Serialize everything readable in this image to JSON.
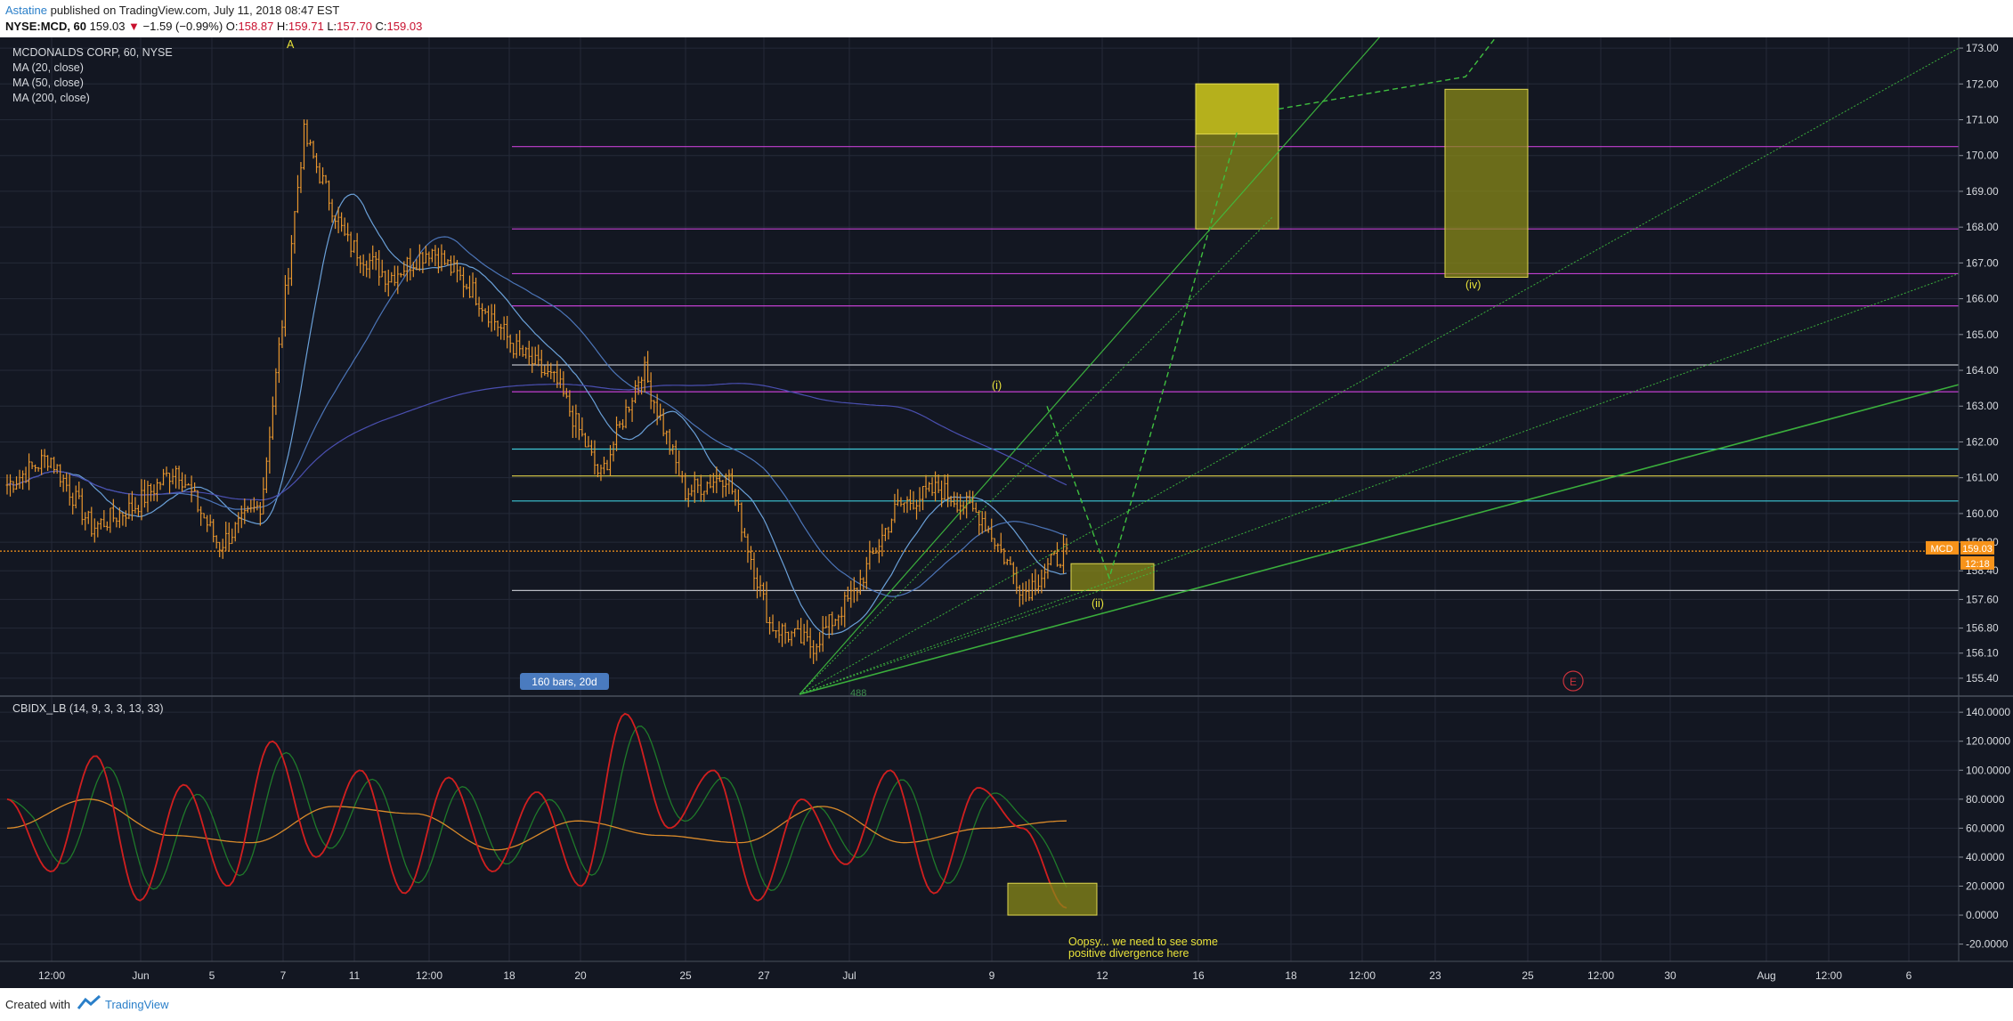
{
  "header": {
    "author": "Astatine",
    "published": "published on TradingView.com, July 11, 2018 08:47 EST",
    "symbol": "NYSE:MCD, 60",
    "last": "159.03",
    "change_arrow": "▼",
    "change": "−1.59 (−0.99%)",
    "o_label": "O:",
    "o": "158.87",
    "h_label": "H:",
    "h": "159.71",
    "l_label": "L:",
    "l": "157.70",
    "c_label": "C:",
    "c": "159.03"
  },
  "legend": {
    "title": "MCDONALDS CORP, 60, NYSE",
    "ma20": "MA (20, close)",
    "ma50": "MA (50, close)",
    "ma200": "MA (200, close)",
    "indicator": "CBIDX_LB (14, 9, 3, 3, 13, 33)"
  },
  "price_badge": {
    "symbol": "MCD",
    "price": "159.03",
    "countdown": "12:18"
  },
  "footer": {
    "created_with": "Created with",
    "brand": "TradingView"
  },
  "colors": {
    "background": "#131722",
    "candle": "#e8962e",
    "ma20": "#6aa0d8",
    "ma50": "#4c75b8",
    "ma200": "#4a4fb0",
    "magenta": "#c23fd0",
    "cyan": "#3ec8d8",
    "yellow_line": "#e0d24a",
    "gray_line": "#b9bcc4",
    "green": "#3fbf3f",
    "box": "#8a8a18",
    "osc_red": "#d11f1f",
    "osc_orange": "#d98a2a",
    "osc_green": "#1f7a2a",
    "badge": "#f7931a"
  },
  "chart_data": {
    "type": "candlestick",
    "symbol": "MCD",
    "title": "MCDONALDS CORP, 60, NYSE",
    "interval": "60",
    "x_tick_labels": [
      "12:00",
      "Jun",
      "5",
      "7",
      "11",
      "12:00",
      "18",
      "20",
      "25",
      "27",
      "Jul",
      "9",
      "12",
      "16",
      "18",
      "12:00",
      "23",
      "25",
      "12:00",
      "30",
      "Aug",
      "12:00",
      "6"
    ],
    "y_tick_labels": [
      "173.00",
      "172.00",
      "171.00",
      "170.00",
      "169.00",
      "168.00",
      "167.00",
      "166.00",
      "165.00",
      "164.00",
      "163.00",
      "162.00",
      "161.00",
      "160.00",
      "159.20",
      "158.40",
      "157.60",
      "156.80",
      "156.10",
      "155.40"
    ],
    "ylim": [
      154.95,
      173.3
    ],
    "approx_close_path": [
      160.8,
      161.6,
      159.6,
      160.2,
      161.3,
      159.1,
      160.3,
      170.6,
      167.6,
      166.6,
      167.4,
      166.2,
      164.6,
      163.6,
      161.0,
      164.1,
      160.6,
      161.1,
      156.9,
      156.3,
      157.8,
      160.2,
      160.7,
      159.9,
      157.8,
      159.03
    ],
    "horizontal_levels": [
      {
        "value": 170.25,
        "color": "magenta"
      },
      {
        "value": 167.95,
        "color": "magenta"
      },
      {
        "value": 166.7,
        "color": "magenta"
      },
      {
        "value": 165.8,
        "color": "magenta"
      },
      {
        "value": 164.15,
        "color": "gray"
      },
      {
        "value": 163.4,
        "color": "magenta"
      },
      {
        "value": 161.8,
        "color": "cyan"
      },
      {
        "value": 161.05,
        "color": "yellow"
      },
      {
        "value": 160.35,
        "color": "cyan"
      },
      {
        "value": 158.95,
        "color": "orange-dotted"
      },
      {
        "value": 157.85,
        "color": "gray"
      }
    ],
    "target_boxes": [
      {
        "label": "(ii)",
        "price_range": [
          157.85,
          158.6
        ]
      },
      {
        "label": "",
        "price_range": [
          167.95,
          172.0
        ]
      },
      {
        "label": "(iv)",
        "price_range": [
          166.6,
          171.85
        ]
      }
    ],
    "wave_labels": [
      "A",
      "(i)",
      "(ii)",
      "(iv)",
      "E"
    ],
    "range_tag": "160 bars, 20d",
    "fan_origin_tag": "488",
    "oscillator": {
      "name": "CBIDX_LB (14, 9, 3, 3, 13, 33)",
      "ylim": [
        -27,
        145
      ],
      "y_tick_labels": [
        "140.0000",
        "120.0000",
        "100.0000",
        "80.0000",
        "60.0000",
        "40.0000",
        "20.0000",
        "0.0000",
        "-20.0000"
      ],
      "approx_red_path": [
        80,
        30,
        110,
        10,
        90,
        20,
        120,
        40,
        100,
        15,
        95,
        30,
        85,
        20,
        139,
        60,
        100,
        10,
        80,
        35,
        100,
        15,
        88,
        60,
        5
      ],
      "approx_orange_path": [
        60,
        80,
        55,
        50,
        75,
        70,
        45,
        65,
        55,
        50,
        75,
        50,
        60,
        65
      ],
      "annotation_box_range": [
        0,
        22
      ],
      "annotation": "Oopsy... we need to see some positive divergence here"
    }
  }
}
